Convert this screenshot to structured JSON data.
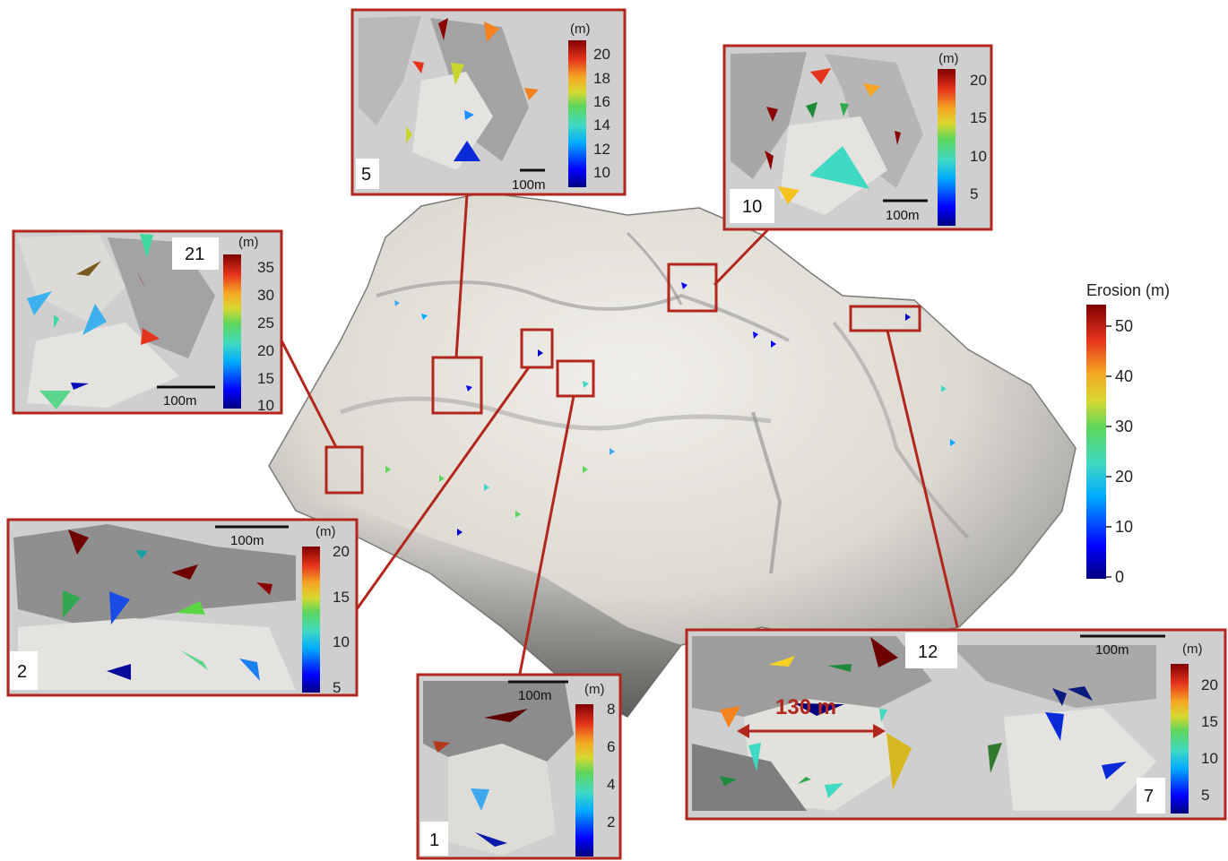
{
  "legend": {
    "title": "Erosion (m)",
    "ticks": [
      "50",
      "40",
      "30",
      "20",
      "10",
      "0"
    ],
    "colors": [
      "#00007f",
      "#0000ff",
      "#00aaff",
      "#3fd9c4",
      "#5cd65c",
      "#d8d830",
      "#f5a623",
      "#e6341c",
      "#7f0000"
    ]
  },
  "insets": [
    {
      "id": "5",
      "label": "5",
      "unit": "(m)",
      "ticks": [
        "20",
        "18",
        "16",
        "14",
        "12",
        "10"
      ],
      "scale": "100m"
    },
    {
      "id": "10",
      "label": "10",
      "unit": "(m)",
      "ticks": [
        "20",
        "15",
        "10",
        "5"
      ],
      "scale": "100m"
    },
    {
      "id": "21",
      "label": "21",
      "unit": "(m)",
      "ticks": [
        "35",
        "30",
        "25",
        "20",
        "15",
        "10"
      ],
      "scale": "100m"
    },
    {
      "id": "2",
      "label": "2",
      "unit": "(m)",
      "ticks": [
        "20",
        "15",
        "10",
        "5"
      ],
      "scale": "100m"
    },
    {
      "id": "1",
      "label": "1",
      "unit": "(m)",
      "ticks": [
        "8",
        "6",
        "4",
        "2"
      ],
      "scale": "100m"
    },
    {
      "id": "7",
      "label": "7",
      "label2": "12",
      "unit": "(m)",
      "ticks": [
        "20",
        "15",
        "10",
        "5"
      ],
      "scale": "100m",
      "measurement": "130 m"
    }
  ]
}
